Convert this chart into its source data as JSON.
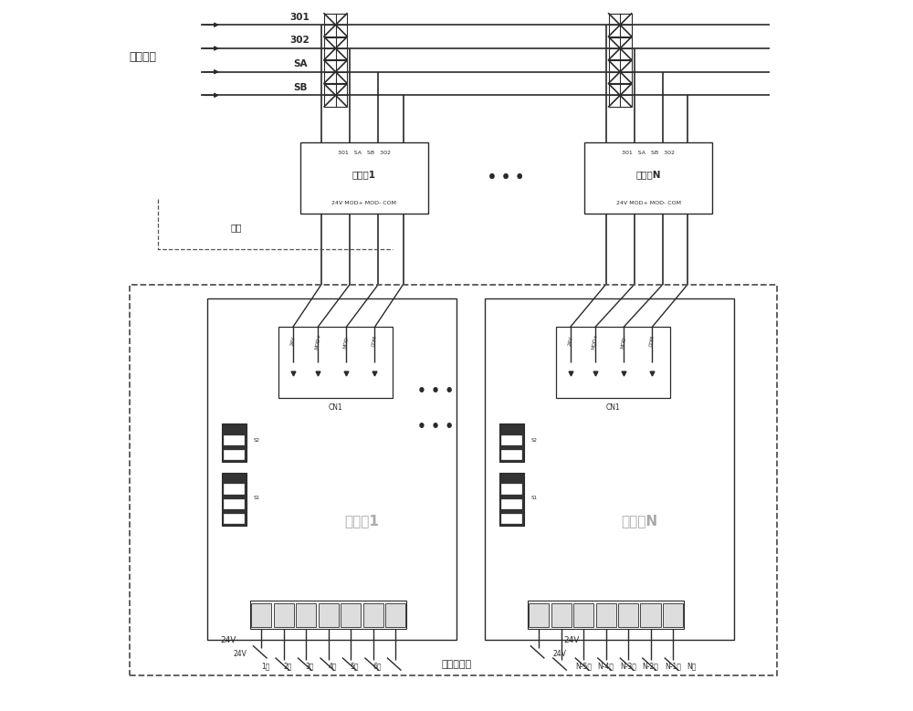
{
  "bg_color": "#ffffff",
  "fig_width": 10.0,
  "fig_height": 7.79,
  "left_label": "电梯主戵",
  "signals": [
    "301",
    "302",
    "SA",
    "SB"
  ],
  "relay1_label": "中继器1",
  "relayN_label": "中继器N",
  "relay_top": "301   SA   SB   302",
  "relay_bottom": "24V MOD+ MOD- COM",
  "comm1_label": "通讯朵1",
  "commN_label": "通讯戵N",
  "cn1_label": "CN1",
  "optional_label": "可选",
  "remote_label": "远程控制盒",
  "dots": "• • •",
  "left_wires": [
    "24V",
    "1樼",
    "2樼",
    "3樼",
    "4樼",
    "5樼",
    "6樼"
  ],
  "right_wires": [
    "24V",
    "N-5樼",
    "N-4樼",
    "N-3樼",
    "N-2樼",
    "N-1樼",
    "N樼"
  ],
  "cn_ports": [
    "24V",
    "MOD+",
    "MOD-",
    "COM"
  ],
  "line_color": "#2a2a2a",
  "dashed_color": "#555555",
  "text_color": "#2a2a2a",
  "gray_text": "#aaaaaa",
  "dark_fill": "#333333",
  "light_fill": "#dddddd"
}
